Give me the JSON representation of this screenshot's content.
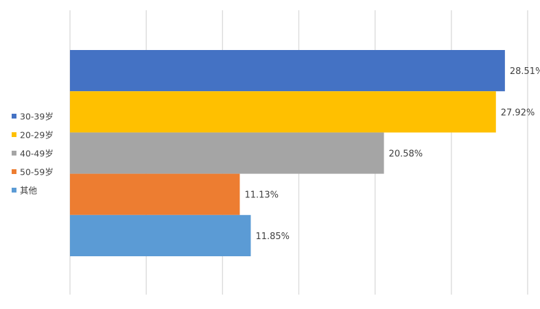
{
  "chart_data": {
    "type": "bar",
    "orientation": "horizontal",
    "xlim": [
      0,
      30
    ],
    "grid": true,
    "legend_position": "left",
    "value_suffix": "%",
    "series": [
      {
        "name": "30-39岁",
        "value": 28.51,
        "label": "28.51%",
        "color": "#4472C4"
      },
      {
        "name": "20-29岁",
        "value": 27.92,
        "label": "27.92%",
        "color": "#FFC000"
      },
      {
        "name": "40-49岁",
        "value": 20.58,
        "label": "20.58%",
        "color": "#A5A5A5"
      },
      {
        "name": "50-59岁",
        "value": 11.13,
        "label": "11.13%",
        "color": "#ED7D31"
      },
      {
        "name": "其他",
        "value": 11.85,
        "label": "11.85%",
        "color": "#5B9BD5"
      }
    ],
    "colors": {
      "grid": "#D9D9D9",
      "label_text": "#404040"
    }
  }
}
